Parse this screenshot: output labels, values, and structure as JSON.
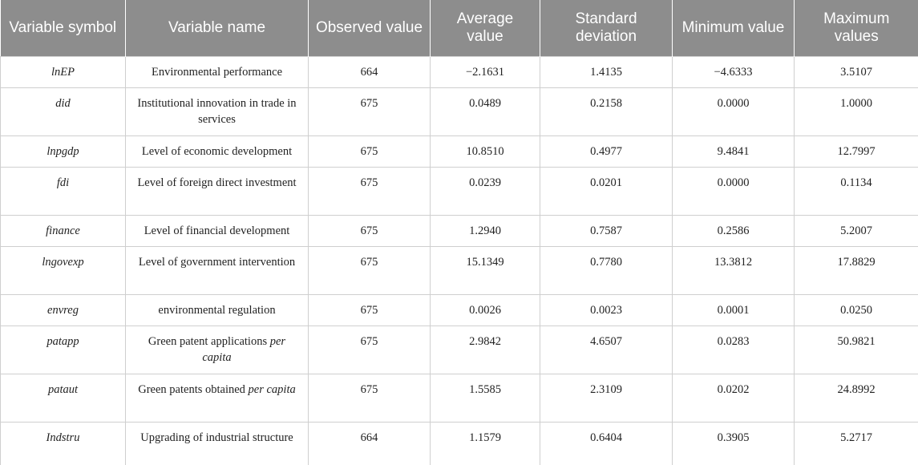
{
  "table": {
    "header": [
      "Variable symbol",
      "Variable name",
      "Observed value",
      "Average value",
      "Standard deviation",
      "Minimum value",
      "Maximum values"
    ],
    "rows": [
      [
        "lnEP",
        "Environmental performance",
        "664",
        "−2.1631",
        "1.4135",
        "−4.6333",
        "3.5107"
      ],
      [
        "did",
        "Institutional innovation in trade in services",
        "675",
        "0.0489",
        "0.2158",
        "0.0000",
        "1.0000"
      ],
      [
        "lnpgdp",
        "Level of economic development",
        "675",
        "10.8510",
        "0.4977",
        "9.4841",
        "12.7997"
      ],
      [
        "fdi",
        "Level of foreign direct investment",
        "675",
        "0.0239",
        "0.0201",
        "0.0000",
        "0.1134"
      ],
      [
        "finance",
        "Level of financial development",
        "675",
        "1.2940",
        "0.7587",
        "0.2586",
        "5.2007"
      ],
      [
        "lngovexp",
        "Level of government intervention",
        "675",
        "15.1349",
        "0.7780",
        "13.3812",
        "17.8829"
      ],
      [
        "envreg",
        "environmental regulation",
        "675",
        "0.0026",
        "0.0023",
        "0.0001",
        "0.0250"
      ],
      [
        "patapp",
        [
          "Green patent applications ",
          "per capita"
        ],
        "675",
        "2.9842",
        "4.6507",
        "0.0283",
        "50.9821"
      ],
      [
        "pataut",
        [
          "Green patents obtained ",
          "per capita"
        ],
        "675",
        "1.5585",
        "2.3109",
        "0.0202",
        "24.8992"
      ],
      [
        "Indstru",
        "Upgrading of industrial structure",
        "664",
        "1.1579",
        "0.6404",
        "0.3905",
        "5.2717"
      ]
    ]
  }
}
